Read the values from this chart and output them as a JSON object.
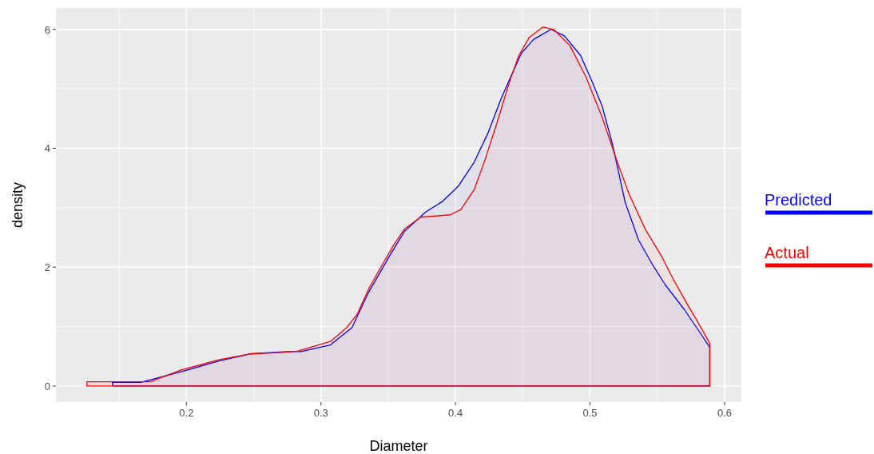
{
  "chart_data": {
    "type": "area",
    "xlabel": "Diameter",
    "ylabel": "density",
    "xlim": [
      0.103,
      0.6125
    ],
    "ylim": [
      -0.27,
      6.36
    ],
    "xticks": [
      0.2,
      0.3,
      0.4,
      0.5,
      0.6
    ],
    "yticks": [
      0,
      2,
      4,
      6
    ],
    "grid": true,
    "legend": "right",
    "series": [
      {
        "name": "Predicted",
        "color": "#0000ff",
        "x": [
          0.145,
          0.166,
          0.196,
          0.224,
          0.247,
          0.275,
          0.285,
          0.307,
          0.323,
          0.335,
          0.351,
          0.362,
          0.378,
          0.39,
          0.402,
          0.414,
          0.424,
          0.434,
          0.442,
          0.449,
          0.458,
          0.471,
          0.481,
          0.493,
          0.501,
          0.509,
          0.517,
          0.526,
          0.536,
          0.547,
          0.556,
          0.57,
          0.582,
          0.589
        ],
        "values": [
          0.06,
          0.06,
          0.24,
          0.42,
          0.54,
          0.58,
          0.58,
          0.69,
          0.98,
          1.56,
          2.19,
          2.6,
          2.93,
          3.1,
          3.36,
          3.77,
          4.25,
          4.84,
          5.25,
          5.6,
          5.83,
          6.0,
          5.89,
          5.56,
          5.15,
          4.71,
          4.04,
          3.1,
          2.46,
          2.02,
          1.7,
          1.29,
          0.89,
          0.65
        ]
      },
      {
        "name": "Actual",
        "color": "#ff0000",
        "x": [
          0.126,
          0.145,
          0.173,
          0.196,
          0.224,
          0.247,
          0.275,
          0.283,
          0.307,
          0.319,
          0.327,
          0.336,
          0.345,
          0.354,
          0.362,
          0.374,
          0.396,
          0.404,
          0.414,
          0.422,
          0.431,
          0.44,
          0.447,
          0.455,
          0.465,
          0.473,
          0.485,
          0.497,
          0.509,
          0.519,
          0.529,
          0.541,
          0.553,
          0.562,
          0.572,
          0.58,
          0.589
        ],
        "values": [
          0.07,
          0.07,
          0.07,
          0.27,
          0.44,
          0.54,
          0.57,
          0.59,
          0.75,
          0.98,
          1.21,
          1.66,
          2.02,
          2.37,
          2.64,
          2.84,
          2.88,
          2.97,
          3.31,
          3.81,
          4.44,
          5.11,
          5.56,
          5.87,
          6.04,
          6.0,
          5.73,
          5.2,
          4.52,
          3.85,
          3.23,
          2.64,
          2.19,
          1.79,
          1.39,
          1.08,
          0.72
        ]
      }
    ]
  }
}
